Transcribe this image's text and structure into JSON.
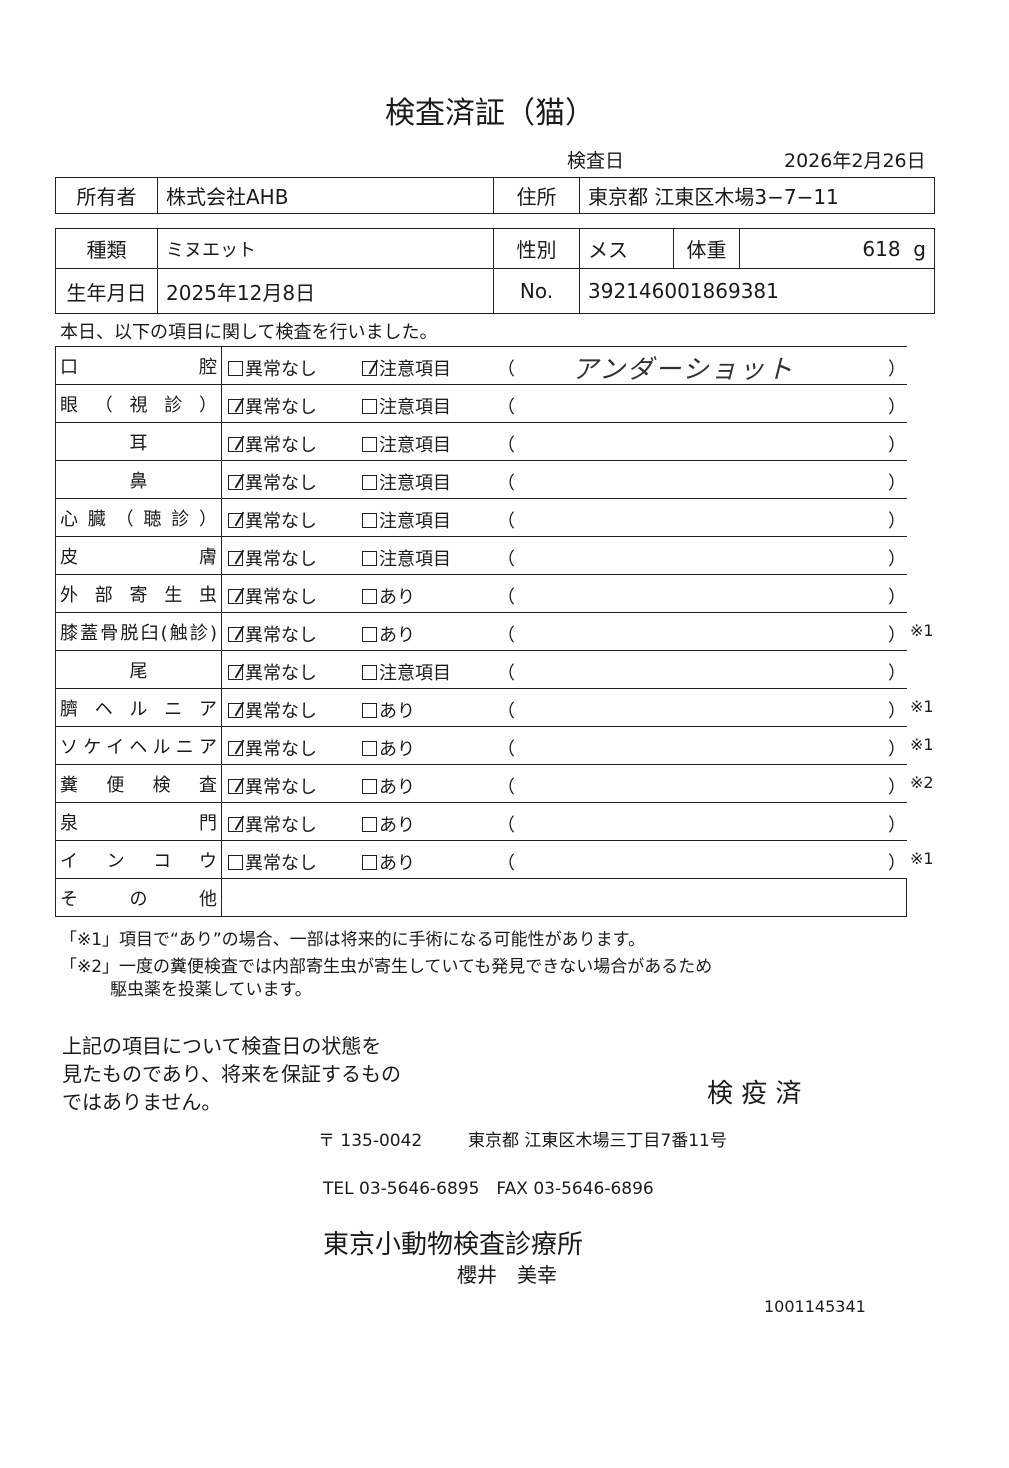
{
  "title": "検査済証（猫）",
  "inspection_date_label": "検査日",
  "inspection_date": "2026年2月26日",
  "owner": {
    "label": "所有者",
    "value": "株式会社AHB",
    "address_label": "住所",
    "address": "東京都 江東区木場3−7−11"
  },
  "animal": {
    "breed_label": "種類",
    "breed": "ミヌエット",
    "sex_label": "性別",
    "sex": "メス",
    "weight_label": "体重",
    "weight": "618",
    "weight_unit": "g",
    "birth_label": "生年月日",
    "birth": "2025年12月8日",
    "no_label": "No.",
    "no": "392146001869381"
  },
  "intro": "本日、以下の項目に関して検査を行いました。",
  "open_paren": "（",
  "close_paren": "）",
  "rows": [
    {
      "name": "口　　　腔",
      "normal": "異常なし",
      "normal_checked": false,
      "other": "注意項目",
      "other_checked": true,
      "note": "アンダーショット",
      "mark": ""
    },
    {
      "name": "眼（視診）",
      "normal": "異常なし",
      "normal_checked": true,
      "other": "注意項目",
      "other_checked": false,
      "note": "",
      "mark": ""
    },
    {
      "name": "耳",
      "normal": "異常なし",
      "normal_checked": true,
      "other": "注意項目",
      "other_checked": false,
      "note": "",
      "mark": ""
    },
    {
      "name": "鼻",
      "normal": "異常なし",
      "normal_checked": true,
      "other": "注意項目",
      "other_checked": false,
      "note": "",
      "mark": ""
    },
    {
      "name": "心臓（聴診）",
      "normal": "異常なし",
      "normal_checked": true,
      "other": "注意項目",
      "other_checked": false,
      "note": "",
      "mark": ""
    },
    {
      "name": "皮　　　膚",
      "normal": "異常なし",
      "normal_checked": true,
      "other": "注意項目",
      "other_checked": false,
      "note": "",
      "mark": ""
    },
    {
      "name": "外部寄生虫",
      "normal": "異常なし",
      "normal_checked": true,
      "other": "あり",
      "other_checked": false,
      "note": "",
      "mark": ""
    },
    {
      "name": "膝蓋骨脱臼(触診)",
      "normal": "異常なし",
      "normal_checked": true,
      "other": "あり",
      "other_checked": false,
      "note": "",
      "mark": "※1"
    },
    {
      "name": "尾",
      "normal": "異常なし",
      "normal_checked": true,
      "other": "注意項目",
      "other_checked": false,
      "note": "",
      "mark": ""
    },
    {
      "name": "臍ヘルニア",
      "normal": "異常なし",
      "normal_checked": true,
      "other": "あり",
      "other_checked": false,
      "note": "",
      "mark": "※1"
    },
    {
      "name": "ソケイヘルニア",
      "normal": "異常なし",
      "normal_checked": true,
      "other": "あり",
      "other_checked": false,
      "note": "",
      "mark": "※1"
    },
    {
      "name": "糞便検査",
      "normal": "異常なし",
      "normal_checked": true,
      "other": "あり",
      "other_checked": false,
      "note": "",
      "mark": "※2"
    },
    {
      "name": "泉　　　門",
      "normal": "異常なし",
      "normal_checked": true,
      "other": "あり",
      "other_checked": false,
      "note": "",
      "mark": ""
    },
    {
      "name": "インコウ",
      "normal": "異常なし",
      "normal_checked": false,
      "other": "あり",
      "other_checked": false,
      "note": "",
      "mark": "※1"
    }
  ],
  "other_row": "そ　の　他",
  "footnote1": "「※1」項目で“あり”の場合、一部は将来的に手術になる可能性があります。",
  "footnote2a": "「※2」一度の糞便検査では内部寄生虫が寄生していても発見できない場合があるため",
  "footnote2b": "駆虫薬を投薬しています。",
  "disclaimer": [
    "上記の項目について検査日の状態を",
    "見たものであり、将来を保証するもの",
    "ではありません。"
  ],
  "stamp": "検 疫 済",
  "postal": "〒 135-0042",
  "clinic_address": "東京都 江東区木場三丁目7番11号",
  "phone": "TEL 03-5646-6895　FAX 03-5646-6896",
  "clinic": "東京小動物検査診療所",
  "doctor": "櫻井　美幸",
  "doc_number": "1001145341"
}
